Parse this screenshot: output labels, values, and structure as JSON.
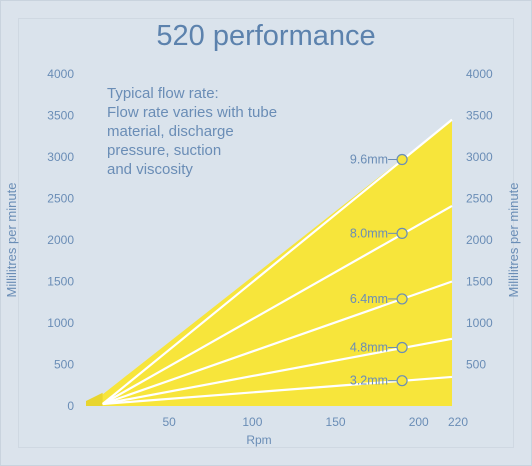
{
  "chart_data": {
    "type": "area",
    "title": "520 performance",
    "xlabel": "Rpm",
    "ylabel": "Millilitres per minute",
    "y2label": "Millilitres per minute",
    "xlim": [
      0,
      220
    ],
    "ylim": [
      0,
      4000
    ],
    "x_ticks": [
      "50",
      "100",
      "150",
      "200",
      "220"
    ],
    "y_ticks_left": [
      "0",
      "500",
      "1000",
      "1500",
      "2000",
      "2500",
      "3000",
      "3500",
      "4000"
    ],
    "y_ticks_right": [
      "500",
      "1000",
      "1500",
      "2000",
      "2500",
      "3000",
      "3500",
      "4000"
    ],
    "note": [
      "Typical flow rate:",
      "Flow rate varies with tube",
      "material, discharge",
      "pressure, suction",
      "and viscosity"
    ],
    "series": [
      {
        "name": "9.6mm",
        "x": [
          10,
          220
        ],
        "y": [
          140,
          3450
        ],
        "marker_x": 190,
        "marker_y": 2970
      },
      {
        "name": "8.0mm",
        "x": [
          10,
          220
        ],
        "y": [
          95,
          2410
        ],
        "marker_x": 190,
        "marker_y": 2080
      },
      {
        "name": "6.4mm",
        "x": [
          10,
          220
        ],
        "y": [
          60,
          1500
        ],
        "marker_x": 190,
        "marker_y": 1290
      },
      {
        "name": "4.8mm",
        "x": [
          10,
          220
        ],
        "y": [
          30,
          810
        ],
        "marker_x": 190,
        "marker_y": 705
      },
      {
        "name": "3.2mm",
        "x": [
          10,
          220
        ],
        "y": [
          15,
          350
        ],
        "marker_x": 190,
        "marker_y": 305
      }
    ],
    "fill_color": "#f7e53b",
    "line_color": "#ffffff",
    "text_color": "#6a8db6",
    "title_color": "#5c82ad"
  }
}
